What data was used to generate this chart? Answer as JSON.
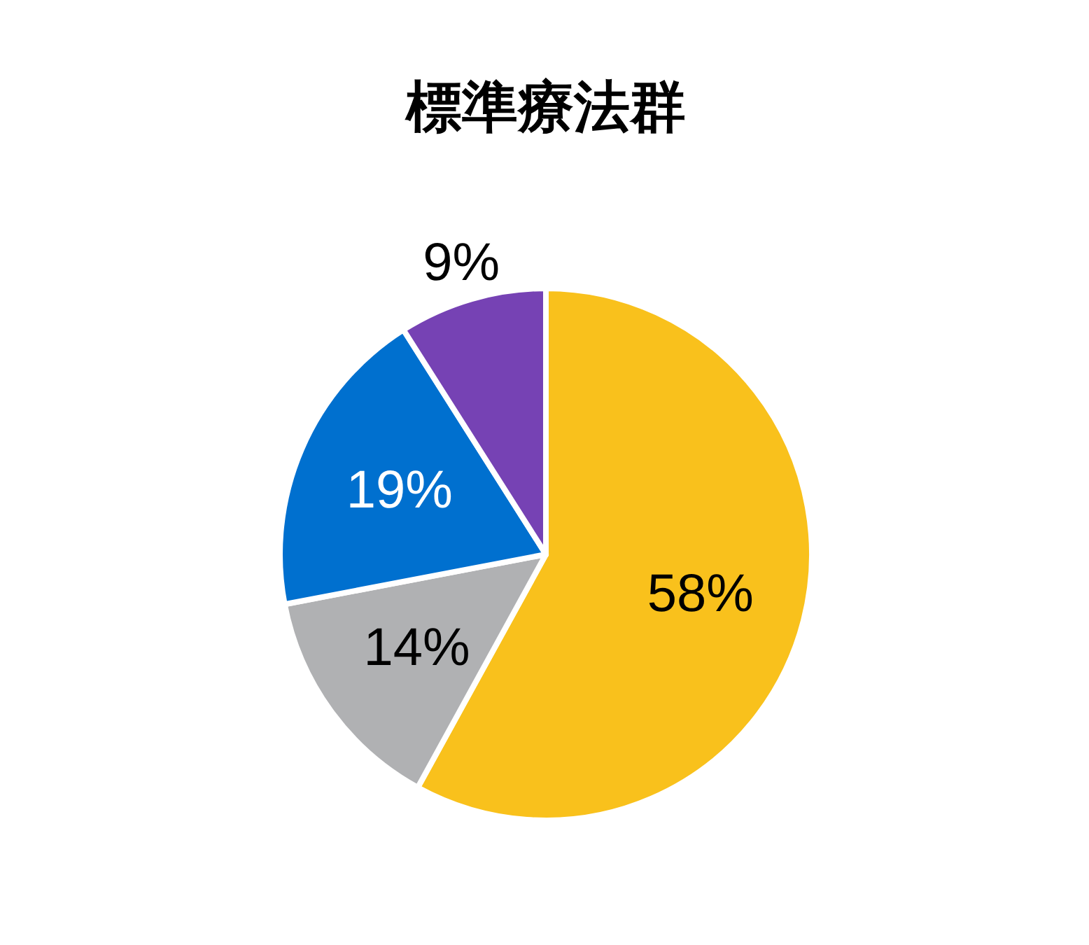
{
  "chart_data": {
    "type": "pie",
    "title": "標準療法群",
    "categories": [
      null,
      null,
      null,
      null
    ],
    "values": [
      58,
      14,
      19,
      9
    ],
    "colors": [
      "#f9c11c",
      "#b0b1b3",
      "#0070cf",
      "#7642b4"
    ],
    "value_labels": [
      "58%",
      "14%",
      "19%",
      "9%"
    ]
  }
}
